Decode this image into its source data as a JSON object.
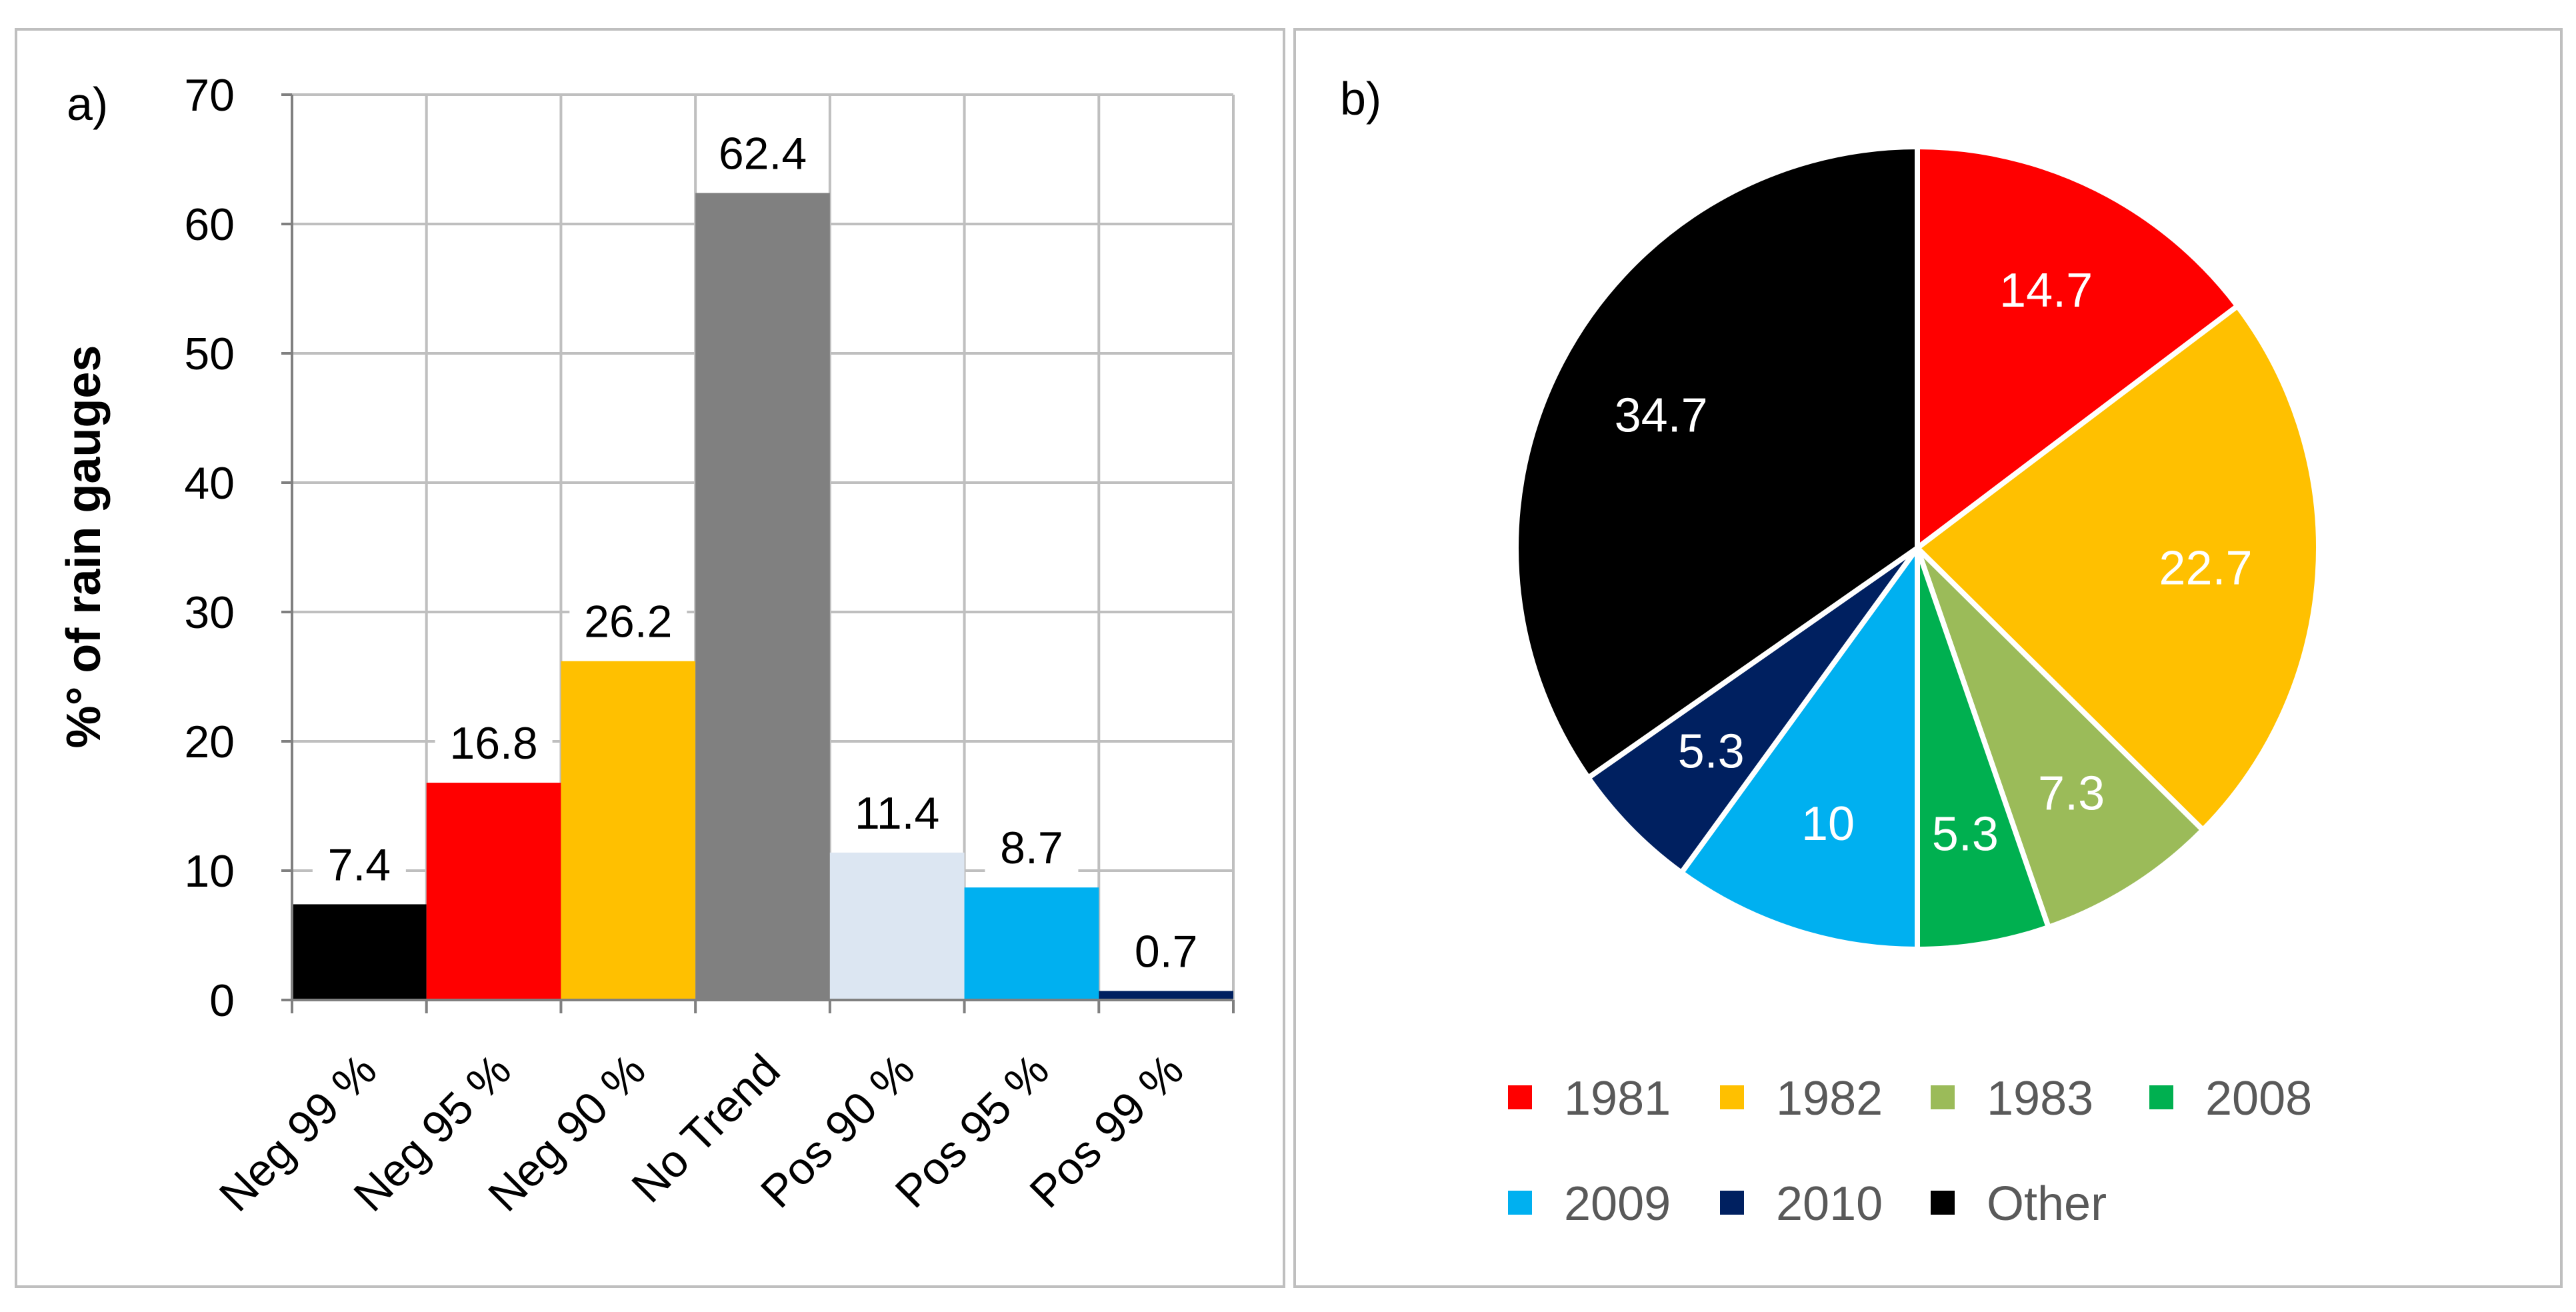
{
  "chart_data": [
    {
      "panel_label": "a)",
      "type": "bar",
      "categories": [
        "Neg 99 %",
        "Neg 95 %",
        "Neg 90 %",
        "No Trend",
        "Pos 90 %",
        "Pos 95 %",
        "Pos 99 %"
      ],
      "values": [
        7.4,
        16.8,
        26.2,
        62.4,
        11.4,
        8.7,
        0.7
      ],
      "value_labels": [
        "7.4",
        "16.8",
        "26.2",
        "62.4",
        "11.4",
        "8.7",
        "0.7"
      ],
      "colors": [
        "#000000",
        "#ff0000",
        "#ffc000",
        "#808080",
        "#dce6f2",
        "#00b0f0",
        "#002060"
      ],
      "ylabel": "%° of rain gauges",
      "xlabel": "",
      "ylim": [
        0,
        70
      ],
      "yticks": [
        "0",
        "10",
        "20",
        "30",
        "40",
        "50",
        "60",
        "70"
      ],
      "grid": true
    },
    {
      "panel_label": "b)",
      "type": "pie",
      "labels": [
        "1981",
        "1982",
        "1983",
        "2008",
        "2009",
        "2010",
        "Other"
      ],
      "values": [
        14.7,
        22.7,
        7.3,
        5.3,
        10,
        5.3,
        34.7
      ],
      "value_labels": [
        "14.7",
        "22.7",
        "7.3",
        "5.3",
        "10",
        "5.3",
        "34.7"
      ],
      "colors": [
        "#ff0000",
        "#ffc000",
        "#9bbb59",
        "#00b050",
        "#00b0f0",
        "#002060",
        "#000000"
      ],
      "legend_position": "bottom"
    }
  ]
}
